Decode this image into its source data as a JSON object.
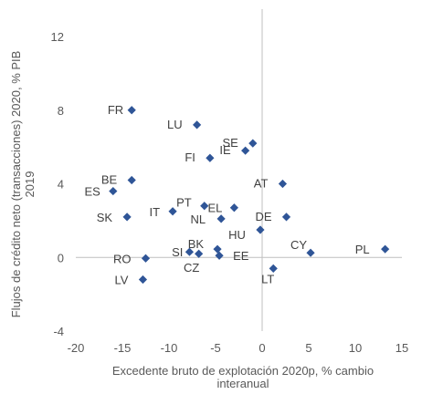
{
  "chart_data": {
    "type": "scatter",
    "xlabel": [
      "Excedente bruto de explotación 2020p, % cambio",
      "interanual"
    ],
    "ylabel": [
      "Flujos de crédito neto (transacciones) 2020, % PIB",
      "2019"
    ],
    "xlim": [
      -20,
      15
    ],
    "ylim": [
      -4,
      12
    ],
    "xticks": [
      -20,
      -15,
      -10,
      -5,
      0,
      5,
      10,
      15
    ],
    "yticks": [
      -4,
      0,
      4,
      8,
      12
    ],
    "marker_color": "#2F5597",
    "points": [
      {
        "label": "FR",
        "x": -14.0,
        "y": 8.0
      },
      {
        "label": "LU",
        "x": -7.0,
        "y": 7.2
      },
      {
        "label": "SE",
        "x": -1.0,
        "y": 6.2
      },
      {
        "label": "IE",
        "x": -1.8,
        "y": 5.8
      },
      {
        "label": "FI",
        "x": -5.6,
        "y": 5.4
      },
      {
        "label": "BE",
        "x": -14.0,
        "y": 4.2
      },
      {
        "label": "AT",
        "x": 2.2,
        "y": 4.0
      },
      {
        "label": "ES",
        "x": -16.0,
        "y": 3.6
      },
      {
        "label": "PT",
        "x": -6.2,
        "y": 2.8
      },
      {
        "label": "EL",
        "x": -3.0,
        "y": 2.7
      },
      {
        "label": "IT",
        "x": -9.6,
        "y": 2.5
      },
      {
        "label": "SK",
        "x": -14.5,
        "y": 2.2
      },
      {
        "label": "DE",
        "x": 2.6,
        "y": 2.2
      },
      {
        "label": "NL",
        "x": -4.4,
        "y": 2.1
      },
      {
        "label": "HU",
        "x": -0.2,
        "y": 1.5
      },
      {
        "label": "PL",
        "x": 13.2,
        "y": 0.45
      },
      {
        "label": "SI",
        "x": -7.8,
        "y": 0.3
      },
      {
        "label": "BK",
        "x": -4.8,
        "y": 0.45
      },
      {
        "label": "CY",
        "x": 5.2,
        "y": 0.25
      },
      {
        "label": "CZ",
        "x": -6.8,
        "y": 0.2
      },
      {
        "label": "EE",
        "x": -4.6,
        "y": 0.1
      },
      {
        "label": "RO",
        "x": -12.5,
        "y": -0.05
      },
      {
        "label": "LT",
        "x": 1.2,
        "y": -0.6
      },
      {
        "label": "LV",
        "x": -12.8,
        "y": -1.2
      }
    ]
  }
}
